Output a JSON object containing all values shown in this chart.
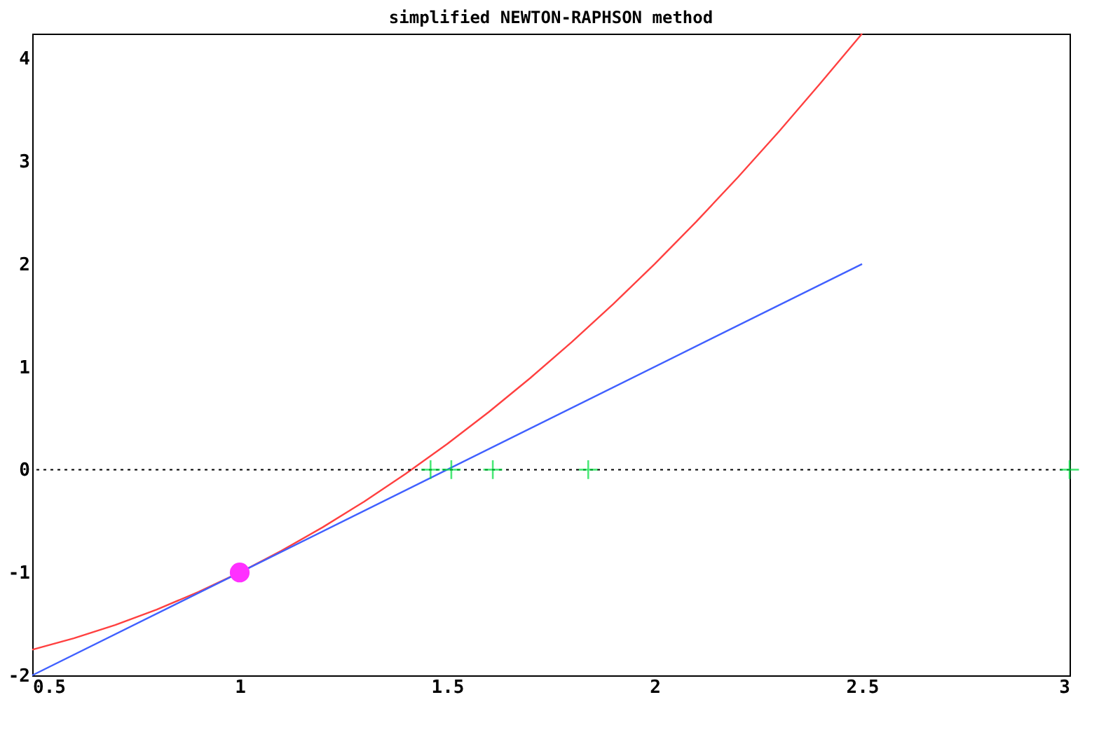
{
  "chart_data": {
    "type": "line",
    "title": "simplified NEWTON-RAPHSON method",
    "xlim": [
      0.5,
      3
    ],
    "ylim": [
      -2,
      4.24
    ],
    "xticks": [
      0.5,
      1,
      1.5,
      2,
      2.5,
      3
    ],
    "yticks": [
      -2,
      -1,
      0,
      1,
      2,
      3,
      4
    ],
    "grid": false,
    "series": [
      {
        "color": "#ff4040",
        "marker": "none",
        "x": [
          0.5,
          0.6,
          0.7,
          0.8,
          0.9,
          1.0,
          1.1,
          1.2,
          1.3,
          1.4,
          1.5,
          1.6,
          1.7,
          1.8,
          1.9,
          2.0,
          2.1,
          2.2,
          2.3,
          2.4,
          2.5
        ],
        "values": [
          -1.75,
          -1.64,
          -1.51,
          -1.36,
          -1.19,
          -1,
          -0.79,
          -0.56,
          -0.31,
          -0.04,
          0.25,
          0.56,
          0.89,
          1.24,
          1.61,
          2,
          2.41,
          2.84,
          3.29,
          3.76,
          4.24
        ]
      },
      {
        "color": "#4060ff",
        "marker": "none",
        "x": [
          0.5,
          2.5
        ],
        "values": [
          -2,
          2
        ]
      },
      {
        "type": "scatter",
        "color": "#00e040",
        "marker": "cross",
        "x": [
          1.46,
          1.51,
          1.61,
          1.84,
          3.0
        ],
        "values": [
          0,
          0,
          0,
          0,
          0
        ]
      },
      {
        "type": "scatter",
        "color": "#ff30ff",
        "marker": "circle",
        "x": [
          1
        ],
        "values": [
          -1
        ]
      }
    ],
    "ref_lines": [
      {
        "axis": "y",
        "value": 0,
        "color": "#000000",
        "line_style": "dotted"
      }
    ]
  }
}
